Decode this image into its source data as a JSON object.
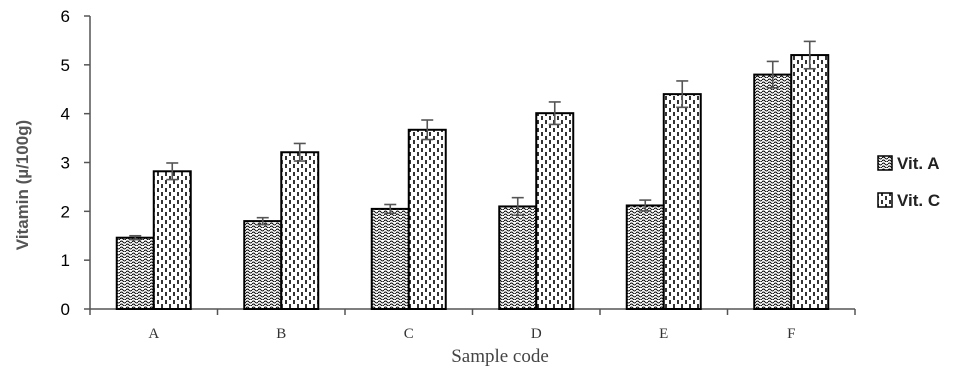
{
  "chart_data": {
    "type": "bar",
    "categories": [
      "A",
      "B",
      "C",
      "D",
      "E",
      "F"
    ],
    "series": [
      {
        "name": "Vit. A",
        "values": [
          1.46,
          1.8,
          2.05,
          2.1,
          2.12,
          4.8
        ],
        "errors": [
          0.04,
          0.07,
          0.09,
          0.18,
          0.11,
          0.27
        ]
      },
      {
        "name": "Vit. C",
        "values": [
          2.82,
          3.21,
          3.67,
          4.01,
          4.4,
          5.2
        ],
        "errors": [
          0.17,
          0.18,
          0.2,
          0.23,
          0.27,
          0.28
        ]
      }
    ],
    "xlabel": "Sample code",
    "ylabel": "Vitamin (µ/100g)",
    "ylim": [
      0,
      6
    ],
    "yticks": [
      0,
      1,
      2,
      3,
      4,
      5,
      6
    ],
    "grid": false,
    "legend_position": "right"
  }
}
